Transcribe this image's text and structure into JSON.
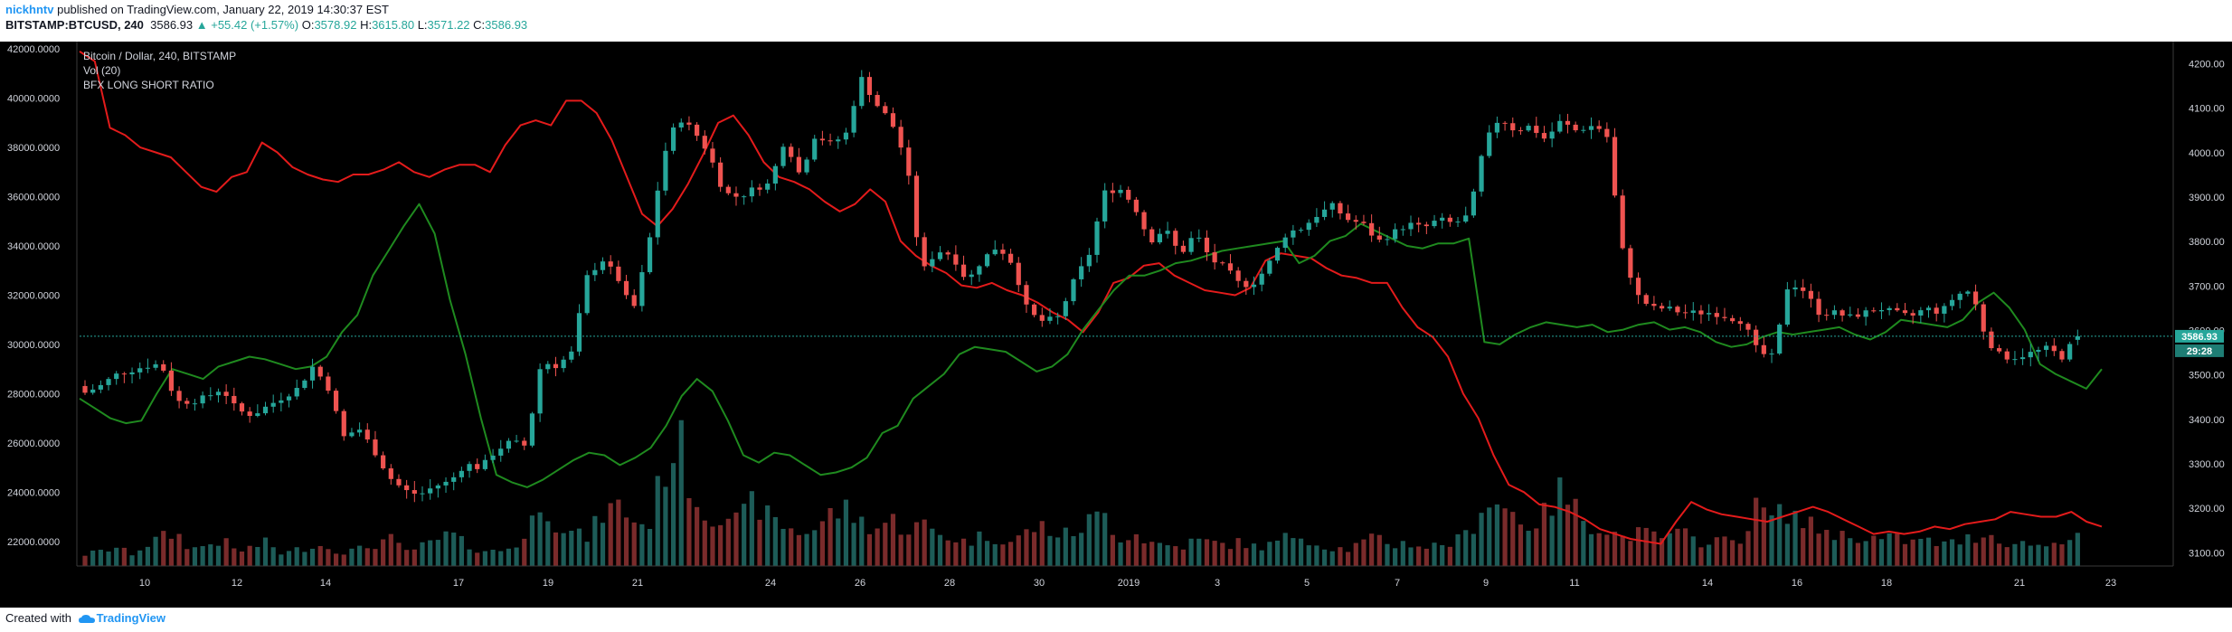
{
  "header": {
    "author": "nickhntv",
    "published_text": "published on TradingView.com, January 22, 2019 14:30:37 EST",
    "symbol": "BITSTAMP:BTCUSD, 240",
    "last": "3586.93",
    "change": "▲ +55.42 (+1.57%)",
    "o_label": "O:",
    "o_val": "3578.92",
    "h_label": "H:",
    "h_val": "3615.80",
    "l_label": "L:",
    "l_val": "3571.22",
    "c_label": "C:",
    "c_val": "3586.93"
  },
  "legend": {
    "title": "Bitcoin / Dollar, 240, BITSTAMP",
    "vol": "Vol (20)",
    "ratio": "BFX LONG SHORT RATIO"
  },
  "footer": {
    "created": "Created with",
    "brand": "TradingView"
  },
  "price_label": "3586.93",
  "countdown": "29:28",
  "colors": {
    "up": "#26a69a",
    "down": "#ef5350",
    "ratio_red": "#e31b1b",
    "ratio_green": "#1f8a1f",
    "background": "#000000"
  },
  "chart_data": {
    "type": "line",
    "title": "Bitcoin / Dollar, 240, BITSTAMP",
    "x_ticks": [
      "10",
      "12",
      "14",
      "17",
      "19",
      "21",
      "24",
      "26",
      "28",
      "30",
      "2019",
      "3",
      "5",
      "7",
      "9",
      "11",
      "14",
      "16",
      "18",
      "21",
      "23"
    ],
    "left_axis": {
      "ticks": [
        "22000.0000",
        "24000.0000",
        "26000.0000",
        "28000.0000",
        "30000.0000",
        "32000.0000",
        "34000.0000",
        "36000.0000",
        "38000.0000",
        "40000.0000",
        "42000.0000"
      ],
      "range": [
        21000,
        42300
      ]
    },
    "right_axis": {
      "ticks": [
        "3100.00",
        "3200.00",
        "3300.00",
        "3400.00",
        "3500.00",
        "3600.00",
        "3700.00",
        "3800.00",
        "3900.00",
        "4000.00",
        "4100.00",
        "4200.00"
      ],
      "range": [
        3070,
        4250
      ]
    },
    "price_close_anchors": [
      3460,
      3475,
      3500,
      3510,
      3520,
      3525,
      3440,
      3440,
      3450,
      3470,
      3420,
      3410,
      3430,
      3450,
      3470,
      3520,
      3470,
      3360,
      3380,
      3330,
      3270,
      3240,
      3230,
      3250,
      3260,
      3300,
      3290,
      3330,
      3350,
      3340,
      3530,
      3520,
      3550,
      3720,
      3760,
      3720,
      3640,
      3780,
      3990,
      4080,
      4050,
      4000,
      3910,
      3900,
      3920,
      3930,
      4030,
      3950,
      4040,
      4020,
      4040,
      4170,
      4110,
      4070,
      3980,
      3730,
      3780,
      3770,
      3710,
      3760,
      3790,
      3750,
      3640,
      3620,
      3630,
      3710,
      3770,
      3910,
      3920,
      3880,
      3800,
      3830,
      3770,
      3820,
      3760,
      3740,
      3700,
      3710,
      3760,
      3820,
      3830,
      3860,
      3880,
      3850,
      3840,
      3800,
      3820,
      3840,
      3830,
      3850,
      3840,
      3860,
      4020,
      4080,
      4050,
      4060,
      4030,
      4070,
      4050,
      4060,
      4050,
      3790,
      3680,
      3650,
      3650,
      3640,
      3640,
      3640,
      3630,
      3620,
      3550,
      3540,
      3710,
      3690,
      3640,
      3640,
      3630,
      3640,
      3650,
      3640,
      3630,
      3650,
      3640,
      3680,
      3690,
      3580,
      3540,
      3540,
      3550,
      3560,
      3540,
      3590
    ],
    "volume_anchors": [
      5,
      6,
      8,
      5,
      9,
      12,
      14,
      7,
      9,
      11,
      6,
      8,
      10,
      5,
      7,
      9,
      8,
      6,
      7,
      9,
      12,
      6,
      8,
      10,
      14,
      9,
      7,
      6,
      8,
      12,
      30,
      18,
      14,
      12,
      22,
      26,
      20,
      16,
      40,
      55,
      30,
      20,
      24,
      18,
      28,
      20,
      17,
      14,
      16,
      22,
      24,
      19,
      16,
      20,
      15,
      18,
      14,
      12,
      10,
      13,
      12,
      10,
      15,
      17,
      13,
      14,
      19,
      22,
      12,
      14,
      10,
      9,
      8,
      11,
      10,
      9,
      10,
      8,
      9,
      12,
      14,
      9,
      8,
      7,
      10,
      12,
      9,
      10,
      8,
      9,
      10,
      14,
      28,
      26,
      22,
      17,
      22,
      32,
      24,
      18,
      16,
      12,
      14,
      13,
      12,
      14,
      10,
      12,
      10,
      13,
      26,
      20,
      24,
      18,
      16,
      14,
      12,
      13,
      11,
      12,
      10,
      11,
      9,
      10,
      12,
      14,
      11,
      9,
      10,
      8,
      12,
      14
    ],
    "series": [
      {
        "name": "",
        "axis": "left",
        "values": [
          41900,
          41500,
          38800,
          38500,
          38000,
          37800,
          37600,
          37000,
          36400,
          36200,
          36800,
          37000,
          38200,
          37800,
          37200,
          36900,
          36700,
          36600,
          36900,
          36900,
          37100,
          37400,
          37000,
          36800,
          37100,
          37300,
          37300,
          37000,
          38100,
          38900,
          39100,
          38900,
          39900,
          39900,
          39400,
          38300,
          36800,
          35300,
          34800,
          35500,
          36500,
          37700,
          39000,
          39300,
          38500,
          37400,
          36800,
          36600,
          36300,
          35800,
          35400,
          35700,
          36300,
          35800,
          34200,
          33600,
          33200,
          32900,
          32400,
          32300,
          32500,
          32200,
          32000,
          31700,
          31300,
          31000,
          30500,
          31300,
          32500,
          32700,
          33200,
          33300,
          32800,
          32500,
          32200,
          32100,
          32000,
          32300,
          33400,
          33700,
          33600,
          33500,
          33100,
          32800,
          32700,
          32500,
          32500,
          31500,
          30700,
          30300,
          29500,
          28000,
          27000,
          25500,
          24300,
          24000,
          23500,
          23400,
          23200,
          22900,
          22500,
          22300,
          22100,
          22000,
          21900,
          22800,
          23600,
          23300,
          23100,
          23000,
          22900,
          22800,
          23000,
          23200,
          23400,
          23200,
          22900,
          22600,
          22300,
          22400,
          22300,
          22400,
          22600,
          22500,
          22700,
          22800,
          22900,
          23200,
          23100,
          23000,
          23000,
          23200,
          22800,
          22600
        ]
      },
      {
        "name": "",
        "axis": "left",
        "values": [
          27800,
          27400,
          27000,
          26800,
          26900,
          28000,
          29000,
          28800,
          28600,
          29100,
          29300,
          29500,
          29400,
          29200,
          29000,
          29100,
          29500,
          30500,
          31200,
          32800,
          33800,
          34800,
          35700,
          34500,
          31800,
          29600,
          27000,
          24700,
          24400,
          24200,
          24500,
          24900,
          25300,
          25600,
          25500,
          25100,
          25400,
          25800,
          26700,
          27900,
          28600,
          28100,
          26900,
          25500,
          25200,
          25600,
          25500,
          25100,
          24700,
          24800,
          25000,
          25400,
          26400,
          26700,
          27800,
          28300,
          28800,
          29600,
          29900,
          29800,
          29700,
          29300,
          28900,
          29100,
          29600,
          30600,
          31400,
          32200,
          32800,
          32800,
          33000,
          33300,
          33400,
          33600,
          33800,
          33900,
          34000,
          34100,
          34200,
          33300,
          33600,
          34200,
          34400,
          34900,
          34600,
          34300,
          34000,
          33900,
          34100,
          34100,
          34300,
          30100,
          30000,
          30400,
          30700,
          30900,
          30800,
          30700,
          30800,
          30500,
          30600,
          30800,
          30900,
          30600,
          30700,
          30500,
          30100,
          29900,
          30000,
          30300,
          30500,
          30400,
          30500,
          30600,
          30700,
          30400,
          30200,
          30500,
          31000,
          30900,
          30800,
          30700,
          31000,
          31700,
          32100,
          31500,
          30600,
          29200,
          28800,
          28500,
          28200,
          29000
        ]
      }
    ]
  }
}
